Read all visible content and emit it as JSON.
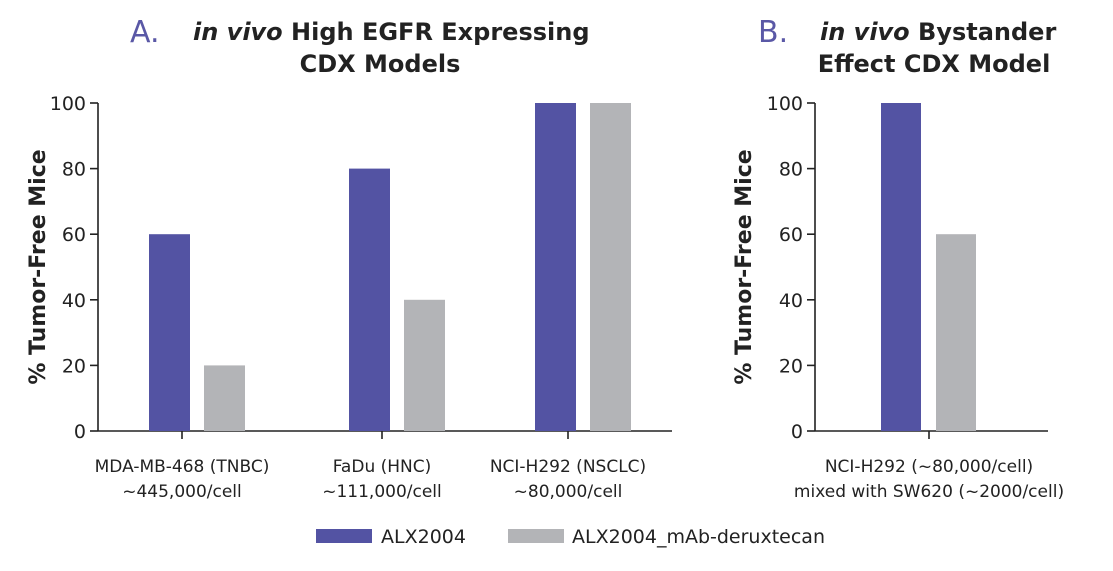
{
  "colors": {
    "series_1": "#5353a3",
    "series_2": "#b3b4b7",
    "panel_letter": "#5a58a6"
  },
  "legend": {
    "items": [
      {
        "label": "ALX2004",
        "color": "#5353a3"
      },
      {
        "label": "ALX2004_mAb-deruxtecan",
        "color": "#b3b4b7"
      }
    ]
  },
  "chart_data": [
    {
      "type": "bar",
      "panel_letter": "A.",
      "title_italic": "in vivo",
      "title_line1_rest": " High EGFR Expressing",
      "title_line2": "CDX Models",
      "ylabel": "% Tumor-Free Mice",
      "ylim": [
        0,
        100
      ],
      "yticks": [
        0,
        20,
        40,
        60,
        80,
        100
      ],
      "categories": [
        [
          "MDA-MB-468 (TNBC)",
          "~445,000/cell"
        ],
        [
          "FaDu (HNC)",
          "~111,000/cell"
        ],
        [
          "NCI-H292 (NSCLC)",
          "~80,000/cell"
        ]
      ],
      "series": [
        {
          "name": "ALX2004",
          "values": [
            60,
            80,
            100
          ]
        },
        {
          "name": "ALX2004_mAb-deruxtecan",
          "values": [
            20,
            40,
            100
          ]
        }
      ]
    },
    {
      "type": "bar",
      "panel_letter": "B.",
      "title_italic": "in vivo",
      "title_line1_rest": " Bystander",
      "title_line2": "Effect CDX Model",
      "ylabel": "% Tumor-Free Mice",
      "ylim": [
        0,
        100
      ],
      "yticks": [
        0,
        20,
        40,
        60,
        80,
        100
      ],
      "categories": [
        [
          "NCI-H292 (~80,000/cell)",
          "mixed with SW620 (~2000/cell)"
        ]
      ],
      "series": [
        {
          "name": "ALX2004",
          "values": [
            100
          ]
        },
        {
          "name": "ALX2004_mAb-deruxtecan",
          "values": [
            60
          ]
        }
      ]
    }
  ]
}
